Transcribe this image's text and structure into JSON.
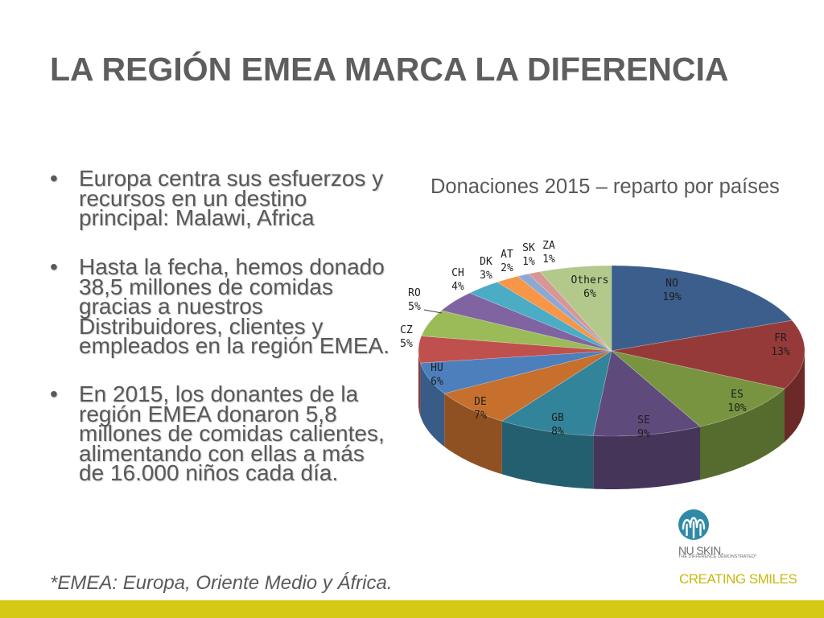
{
  "slide": {
    "title": "LA REGIÓN EMEA MARCA LA DIFERENCIA",
    "bullet_marker": "•",
    "bullets": [
      {
        "lines": [
          "Europa centra sus esfuerzos y",
          "recursos en un destino",
          "principal: Malawi, Africa"
        ]
      },
      {
        "lines": [
          "Hasta la fecha, hemos donado",
          "38,5 millones de comidas",
          "gracias a nuestros",
          "Distribuidores, clientes y",
          "empleados en la región EMEA."
        ]
      },
      {
        "lines": [
          "En 2015, los donantes de la",
          "región EMEA donaron 5,8",
          "millones de comidas calientes,",
          "alimentando con ellas a más",
          "de 16.000 niños cada día."
        ]
      }
    ],
    "footnote": "*EMEA: Europa, Oriente Medio y África."
  },
  "brand": {
    "logo_icon": "nu-skin-fountain-logo",
    "logo_name": "NU SKIN.",
    "logo_tagline": "THE DIFFERENCE DEMONSTRATED*",
    "slogan": "CREATING SMILES"
  },
  "theme": {
    "accent_bar_color": "#d6c915",
    "slogan_color": "#c9b80f",
    "logo_color": "#2f8aa8"
  },
  "chart_data": {
    "type": "pie",
    "style": "3d",
    "title": "Donaciones 2015 – reparto por países",
    "legend": "none",
    "categories": [
      "NO",
      "FR",
      "ES",
      "SE",
      "GB",
      "DE",
      "HU",
      "CZ",
      "RO",
      "CH",
      "DK",
      "AT",
      "SK",
      "ZA",
      "Others"
    ],
    "values": [
      19,
      13,
      10,
      9,
      8,
      7,
      6,
      5,
      5,
      4,
      3,
      2,
      1,
      1,
      6
    ],
    "value_labels": [
      "19%",
      "13%",
      "10%",
      "9%",
      "8%",
      "7%",
      "6%",
      "5%",
      "5%",
      "4%",
      "3%",
      "2%",
      "1%",
      "1%",
      "6%"
    ],
    "colors": [
      "#3b5e8c",
      "#953a38",
      "#789440",
      "#5f4a7c",
      "#32849a",
      "#c7702e",
      "#4e7fbd",
      "#c0504d",
      "#9bbb59",
      "#8064a2",
      "#4bacc6",
      "#f79646",
      "#8ea8d4",
      "#d99694",
      "#b3c98b"
    ]
  }
}
